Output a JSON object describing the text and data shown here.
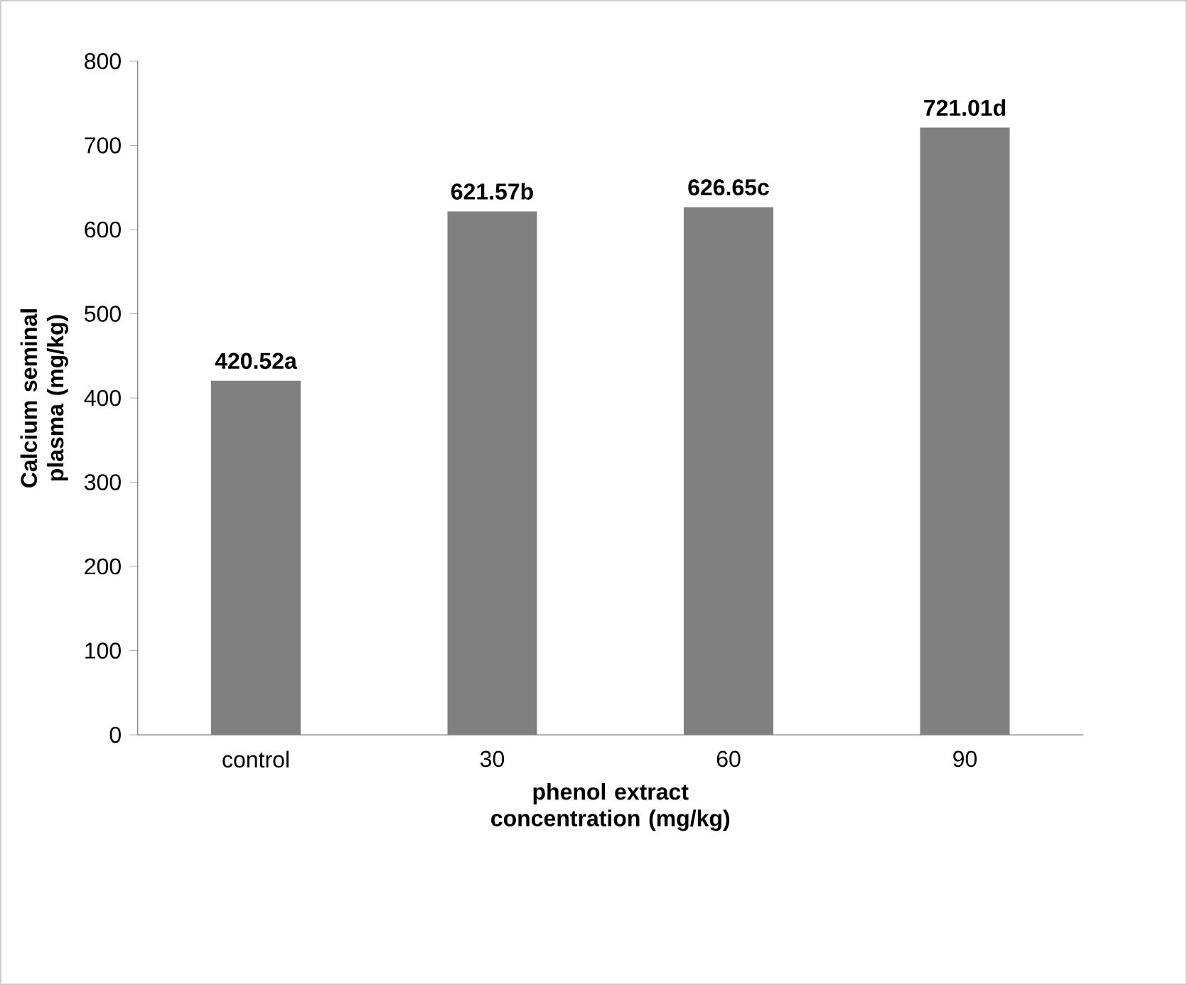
{
  "chart_data": {
    "type": "bar",
    "xlabel": "phenol extract concentration (mg/kg)",
    "ylabel": "Calcium seminal plasma (mg/kg)",
    "categories": [
      "control",
      "30",
      "60",
      "90"
    ],
    "values": [
      420.52,
      621.57,
      626.65,
      721.01
    ],
    "value_labels": [
      "420.52a",
      "621.57b",
      "626.65c",
      "721.01d"
    ],
    "color": "#808080",
    "ylim": [
      0,
      800
    ],
    "yticks": [
      0,
      100,
      200,
      300,
      400,
      500,
      600,
      700,
      800
    ]
  }
}
